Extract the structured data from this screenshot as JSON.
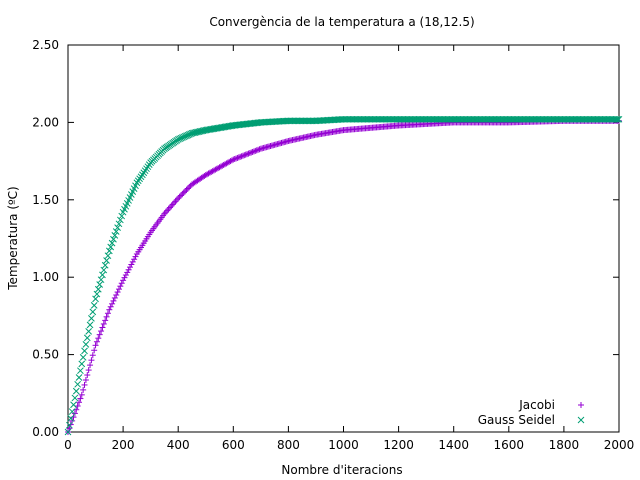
{
  "chart_data": {
    "type": "scatter",
    "title": "Convergència de la temperatura a (18,12.5)",
    "xlabel": "Nombre d'iteracions",
    "ylabel": "Temperatura (ºC)",
    "xlim": [
      0,
      2000
    ],
    "ylim": [
      0,
      2.5
    ],
    "xticks": [
      0,
      200,
      400,
      600,
      800,
      1000,
      1200,
      1400,
      1600,
      1800,
      2000
    ],
    "xtick_labels": [
      "0",
      "200",
      "400",
      "600",
      "800",
      "1000",
      "1200",
      "1400",
      "1600",
      "1800",
      "2000"
    ],
    "yticks": [
      0,
      0.5,
      1.0,
      1.5,
      2.0,
      2.5
    ],
    "ytick_labels": [
      "0.00",
      "0.50",
      "1.00",
      "1.50",
      "2.00",
      "2.50"
    ],
    "grid": false,
    "legend_position": "bottom-right",
    "series": [
      {
        "name": "Jacobi",
        "marker": "+",
        "color": "#9400d3",
        "x": [
          0,
          25,
          50,
          100,
          150,
          200,
          250,
          300,
          350,
          400,
          450,
          500,
          600,
          700,
          800,
          900,
          1000,
          1200,
          1400,
          1600,
          1800,
          2000
        ],
        "y": [
          0.0,
          0.12,
          0.24,
          0.56,
          0.79,
          0.98,
          1.15,
          1.29,
          1.41,
          1.51,
          1.6,
          1.66,
          1.76,
          1.83,
          1.88,
          1.92,
          1.95,
          1.98,
          2.0,
          2.0,
          2.01,
          2.01
        ]
      },
      {
        "name": "Gauss Seidel",
        "marker": "x",
        "color": "#009e73",
        "x": [
          0,
          25,
          50,
          100,
          150,
          200,
          250,
          300,
          350,
          400,
          450,
          500,
          600,
          700,
          800,
          900,
          1000,
          1200,
          1400,
          1600,
          1800,
          2000
        ],
        "y": [
          0.0,
          0.22,
          0.44,
          0.86,
          1.17,
          1.42,
          1.61,
          1.74,
          1.83,
          1.89,
          1.93,
          1.95,
          1.98,
          2.0,
          2.01,
          2.01,
          2.02,
          2.02,
          2.02,
          2.02,
          2.02,
          2.02
        ]
      }
    ]
  }
}
